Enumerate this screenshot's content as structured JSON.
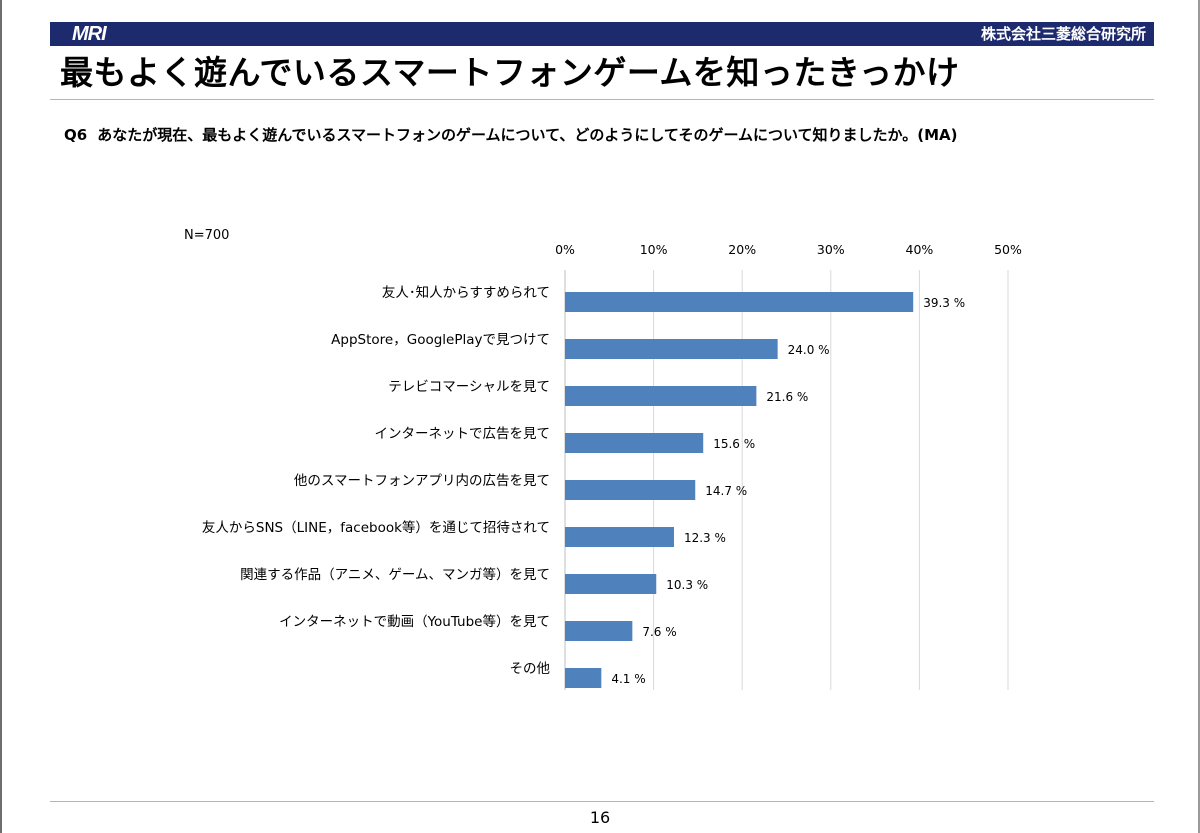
{
  "header": {
    "logo_text": "MRI",
    "company": "株式会社三菱総合研究所"
  },
  "page_title": "最もよく遊んでいるスマートフォンゲームを知ったきっかけ",
  "question": {
    "number": "Q6",
    "text": "あなたが現在、最もよく遊んでいるスマートフォンのゲームについて、どのようにしてそのゲームについて知りましたか。(MA)"
  },
  "sample_size": "N=700",
  "page_number": "16",
  "colors": {
    "header_bar": "#1d2a6e",
    "bar_fill": "#4f81bd"
  },
  "chart_data": {
    "type": "bar",
    "orientation": "horizontal",
    "categories": [
      "友人･知人からすすめられて",
      "AppStore，GooglePlayで見つけて",
      "テレビコマーシャルを見て",
      "インターネットで広告を見て",
      "他のスマートフォンアプリ内の広告を見て",
      "友人からSNS（LINE，facebook等）を通じて招待されて",
      "関連する作品（アニメ、ゲーム、マンガ等）を見て",
      "インターネットで動画（YouTube等）を見て",
      "その他"
    ],
    "values": [
      39.3,
      24.0,
      21.6,
      15.6,
      14.7,
      12.3,
      10.3,
      7.6,
      4.1
    ],
    "value_labels": [
      "39.3 %",
      "24.0 %",
      "21.6 %",
      "15.6 %",
      "14.7 %",
      "12.3 %",
      "10.3 %",
      "7.6 %",
      "4.1 %"
    ],
    "xlim": [
      0,
      50
    ],
    "x_ticks": [
      "0%",
      "10%",
      "20%",
      "30%",
      "40%",
      "50%"
    ],
    "x_tick_values": [
      0,
      10,
      20,
      30,
      40,
      50
    ],
    "x_axis_position": "top",
    "grid": true,
    "legend": "none"
  }
}
